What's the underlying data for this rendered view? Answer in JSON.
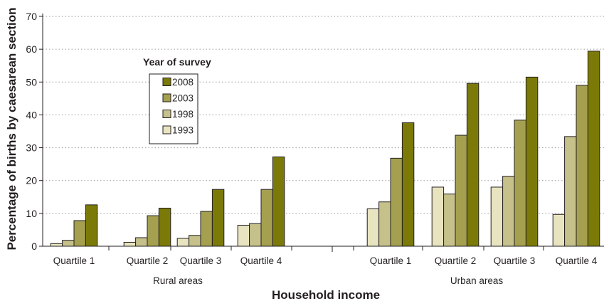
{
  "chart_data": {
    "type": "bar",
    "ylabel": "Percentage of births by caesarean section",
    "xlabel": "Household income",
    "ylim": [
      0,
      70
    ],
    "yticks": [
      0,
      10,
      20,
      30,
      40,
      50,
      60,
      70
    ],
    "grid": true,
    "legend": {
      "title": "Year of survey",
      "placement": "top-left",
      "entries": [
        "2008",
        "2003",
        "1998",
        "1993"
      ]
    },
    "groups": [
      {
        "label": "Rural areas",
        "categories": [
          "Quartile 1",
          "Quartile 2",
          "Quartile 3",
          "Quartile 4"
        ]
      },
      {
        "label": "Urban areas",
        "categories": [
          "Quartile 1",
          "Quartile 2",
          "Quartile 3",
          "Quartile 4"
        ]
      }
    ],
    "categories": [
      "Quartile 1",
      "Quartile 2",
      "Quartile 3",
      "Quartile 4",
      "Quartile 1",
      "Quartile 2",
      "Quartile 3",
      "Quartile 4"
    ],
    "series": [
      {
        "name": "1993",
        "color": "#e8e4c0",
        "values": [
          0.8,
          1.2,
          2.4,
          6.4,
          11.4,
          18.0,
          18.0,
          9.7
        ]
      },
      {
        "name": "1998",
        "color": "#c6c08a",
        "values": [
          1.8,
          2.6,
          3.3,
          6.9,
          13.5,
          15.9,
          21.3,
          33.4
        ]
      },
      {
        "name": "2003",
        "color": "#a5a050",
        "values": [
          7.8,
          9.3,
          10.6,
          17.3,
          26.8,
          33.8,
          38.4,
          49.0
        ]
      },
      {
        "name": "2008",
        "color": "#7b7a08",
        "values": [
          12.6,
          11.6,
          17.3,
          27.2,
          37.6,
          49.6,
          51.5,
          59.4
        ]
      }
    ]
  }
}
